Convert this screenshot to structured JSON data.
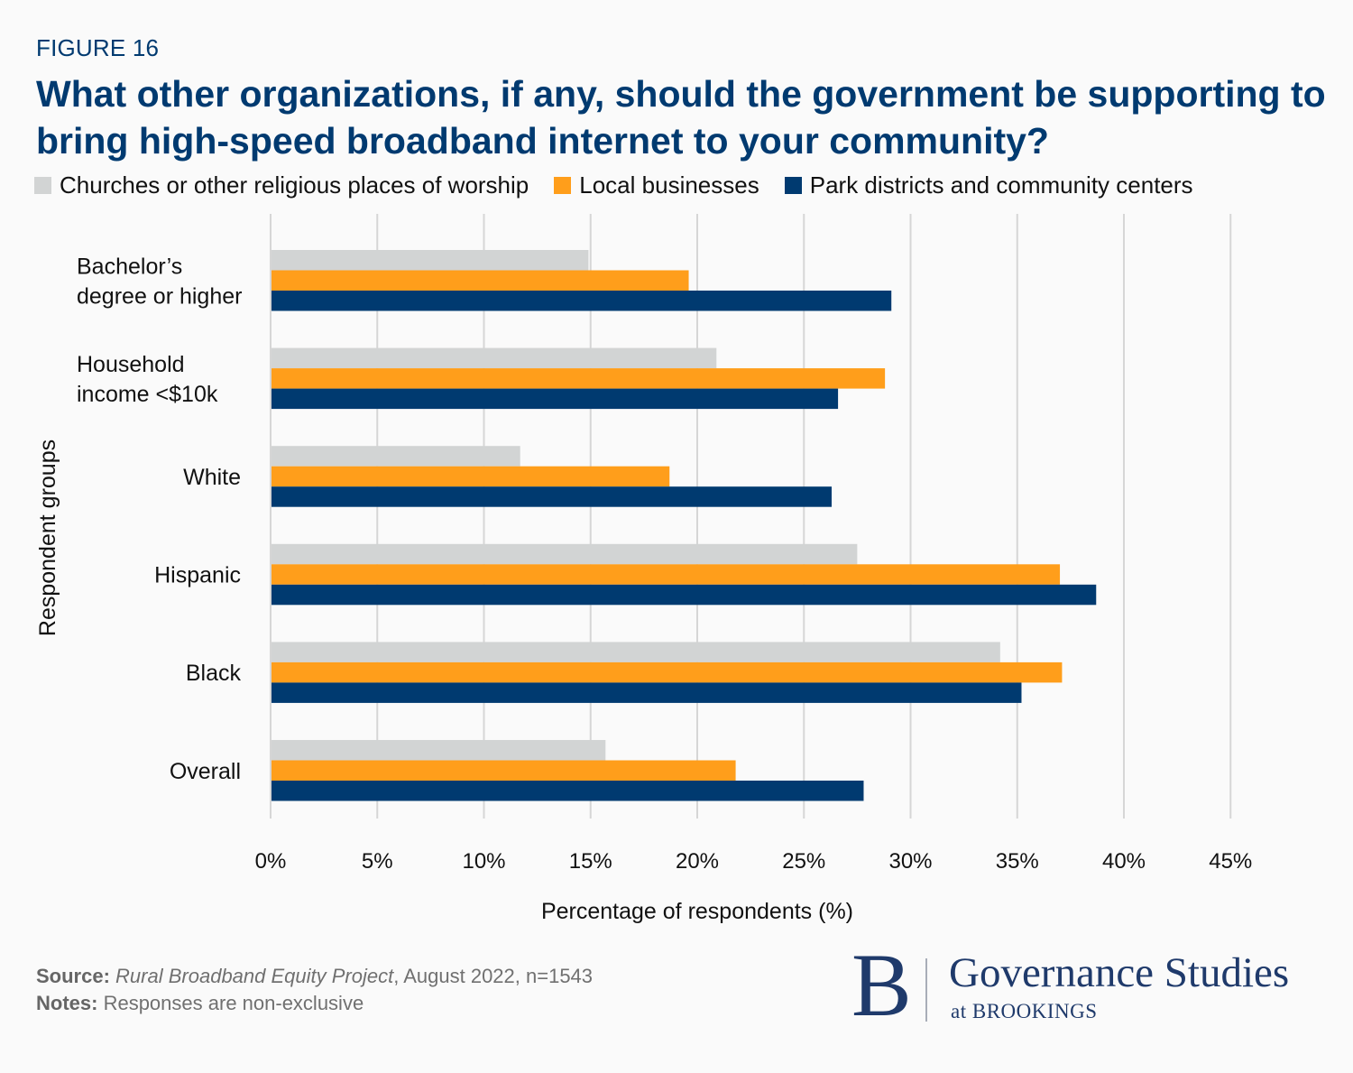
{
  "figure_label": "FIGURE 16",
  "title": "What other organizations, if any, should the government be supporting to bring high-speed broadband internet to your community?",
  "footer": {
    "source_label": "Source:",
    "source_title": "Rural Broadband Equity Project",
    "source_rest": ", August 2022, n=1543",
    "notes_label": "Notes:",
    "notes_text": "Responses are non-exclusive"
  },
  "logo": {
    "letter": "B",
    "main": "Governance Studies",
    "sub": "at BROOKINGS"
  },
  "colors": {
    "title": "#003a70",
    "churches": "#d2d4d4",
    "local": "#ff9e1b",
    "park": "#003a70",
    "grid": "#d6d6d6"
  },
  "chart_data": {
    "type": "bar",
    "orientation": "horizontal",
    "title": "What other organizations, if any, should the government be supporting to bring high-speed broadband internet to your community?",
    "xlabel": "Percentage of respondents (%)",
    "ylabel": "Respondent groups",
    "xlim": [
      0,
      45
    ],
    "xticks": [
      0,
      5,
      10,
      15,
      20,
      25,
      30,
      35,
      40,
      45
    ],
    "xtick_labels": [
      "0%",
      "5%",
      "10%",
      "15%",
      "20%",
      "25%",
      "30%",
      "35%",
      "40%",
      "45%"
    ],
    "grid": true,
    "legend_position": "top",
    "categories": [
      [
        "Bachelor’s",
        "degree or higher"
      ],
      [
        "Household",
        "income <$10k"
      ],
      [
        "White"
      ],
      [
        "Hispanic"
      ],
      [
        "Black"
      ],
      [
        "Overall"
      ]
    ],
    "series": [
      {
        "name": "Churches or other religious places of worship",
        "color": "#d2d4d4",
        "values": [
          14.9,
          20.9,
          11.7,
          27.5,
          34.2,
          15.7
        ]
      },
      {
        "name": "Local businesses",
        "color": "#ff9e1b",
        "values": [
          19.6,
          28.8,
          18.7,
          37.0,
          37.1,
          21.8
        ]
      },
      {
        "name": "Park districts and community centers",
        "color": "#003a70",
        "values": [
          29.1,
          26.6,
          26.3,
          38.7,
          35.2,
          27.8
        ]
      }
    ]
  }
}
